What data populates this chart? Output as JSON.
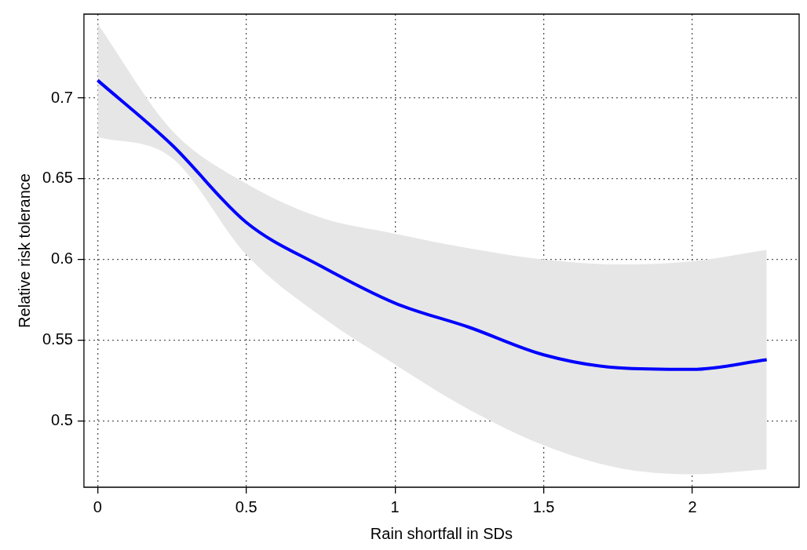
{
  "chart_data": {
    "type": "line",
    "xlabel": "Rain shortfall in SDs",
    "ylabel": "Relative risk tolerance",
    "xlim": [
      -0.046,
      2.359
    ],
    "xticks": [
      0,
      0.5,
      1,
      1.5,
      2
    ],
    "ylim": [
      0.459,
      0.752
    ],
    "yticks": [
      0.5,
      0.55,
      0.6,
      0.65,
      0.7
    ],
    "grid": true,
    "legend": false,
    "marker": "none",
    "line_style": "solid",
    "series": [
      {
        "color": "#0000ff",
        "x": [
          0,
          0.25,
          0.5,
          0.75,
          1,
          1.25,
          1.5,
          1.75,
          2,
          2.25
        ],
        "values": [
          0.711,
          0.671,
          0.623,
          0.596,
          0.573,
          0.558,
          0.541,
          0.533,
          0.532,
          0.538
        ],
        "upper": [
          0.746,
          0.68,
          0.647,
          0.626,
          0.616,
          0.607,
          0.6,
          0.597,
          0.599,
          0.606
        ],
        "lower": [
          0.676,
          0.663,
          0.603,
          0.565,
          0.535,
          0.507,
          0.485,
          0.471,
          0.467,
          0.47
        ]
      }
    ]
  }
}
